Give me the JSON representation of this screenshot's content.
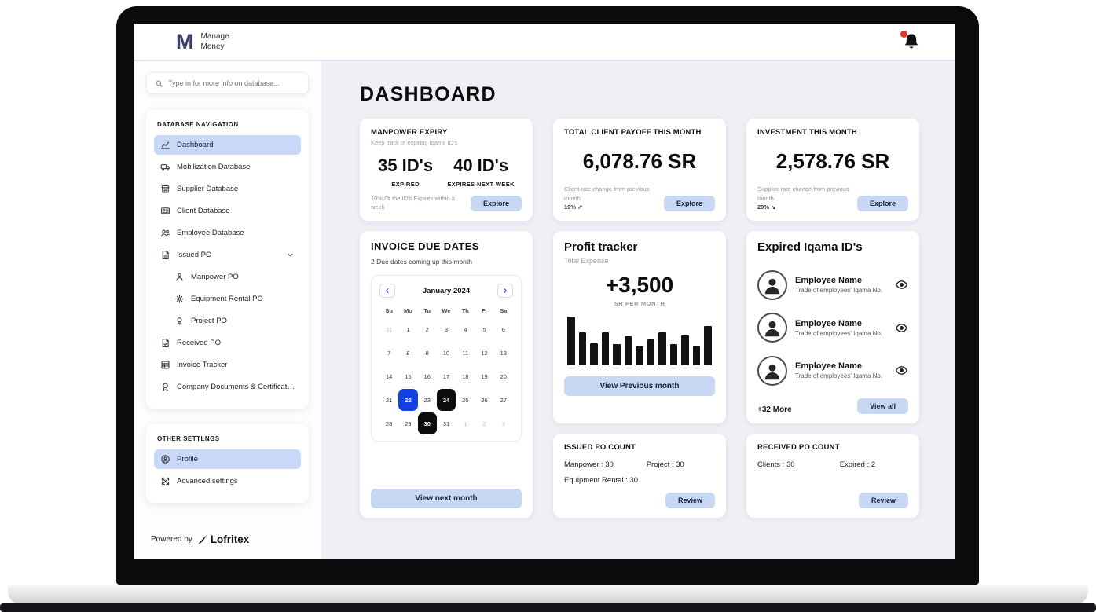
{
  "brand": {
    "logo_letter": "M",
    "name_line1": "Manage",
    "name_line2": "Money"
  },
  "topbar": {
    "notification_icon": "bell-icon",
    "notification_badge_color": "#e5362b"
  },
  "sidebar": {
    "search": {
      "placeholder": "Type in for more info on database...",
      "icon": "search-icon"
    },
    "nav_section_label": "DATABASE NAVIGATION",
    "nav": [
      {
        "label": "Dashboard",
        "icon": "dashboard-chart-icon",
        "active": true
      },
      {
        "label": "Mobilization Database",
        "icon": "truck-icon"
      },
      {
        "label": "Supplier Database",
        "icon": "store-icon"
      },
      {
        "label": "Client Database",
        "icon": "client-card-icon"
      },
      {
        "label": "Employee Database",
        "icon": "employees-icon"
      },
      {
        "label": "Issued PO",
        "icon": "document-icon",
        "expandable": true
      },
      {
        "label": "Manpower PO",
        "icon": "person-icon",
        "child": true
      },
      {
        "label": "Equipment Rental PO",
        "icon": "gear-icon",
        "child": true
      },
      {
        "label": "Project PO",
        "icon": "lightbulb-icon",
        "child": true
      },
      {
        "label": "Received PO",
        "icon": "document-check-icon"
      },
      {
        "label": "Invoice Tracker",
        "icon": "table-icon"
      },
      {
        "label": "Company Documents & Certifications",
        "icon": "certificate-icon"
      }
    ],
    "settings_section_label": "OTHER SETTLNGS",
    "settings": [
      {
        "label": "Profile",
        "icon": "profile-icon",
        "active": true
      },
      {
        "label": "Advanced settings",
        "icon": "advanced-settings-icon"
      }
    ],
    "footer": {
      "powered_by": "Powered by",
      "brand": "Lofritex"
    }
  },
  "main": {
    "page_title": "DASHBOARD",
    "manpower_expiry": {
      "title": "MANPOWER EXPIRY",
      "subtitle": "Keep track of expiring Iqama ID's",
      "stat1_value": "35 ID's",
      "stat1_label": "EXPIRED",
      "stat2_value": "40 ID's",
      "stat2_label": "EXPIRES NEXT WEEK",
      "note": "10% Of the ID's Expires within a week",
      "button": "Explore"
    },
    "client_payoff": {
      "title": "TOTAL CLIENT PAYOFF THIS MONTH",
      "value": "6,078.76 SR",
      "note_line1": "Client rate change from previous month",
      "note_line2": "19% ↗",
      "button": "Explore"
    },
    "investment": {
      "title": "INVESTMENT THIS MONTH",
      "value": "2,578.76 SR",
      "note_line1": "Supplier rate change from previous month",
      "note_line2": "20% ↘",
      "button": "Explore"
    },
    "profit_tracker": {
      "title": "Profit tracker",
      "subtitle": "Total Expense",
      "value": "+3,500",
      "unit": "SR PER MONTH",
      "button": "View Previous month",
      "chart": {
        "type": "bar",
        "color": "#121212",
        "values": [
          100,
          68,
          45,
          67,
          44,
          60,
          39,
          53,
          67,
          44,
          61,
          41,
          80
        ]
      }
    },
    "expired_iqama": {
      "title": "Expired Iqama ID's",
      "employees": [
        {
          "name": "Employee Name",
          "detail": "Trade of employees' Iqama No."
        },
        {
          "name": "Employee Name",
          "detail": "Trade of employees' Iqama No."
        },
        {
          "name": "Employee Name",
          "detail": "Trade of employees' Iqama No."
        }
      ],
      "more": "+32 More",
      "button": "View all"
    },
    "invoice_due": {
      "title": "INVOICE DUE DATES",
      "subtitle": "2 Due dates coming up this month",
      "button": "View next month",
      "calendar": {
        "month": "January 2024",
        "prev_icon": "chevron-left-icon",
        "next_icon": "chevron-right-icon",
        "day_headers": [
          "Su",
          "Mo",
          "Tu",
          "We",
          "Th",
          "Fr",
          "Sa"
        ],
        "selected_blue": "22",
        "selected_black": [
          "24",
          "30"
        ],
        "cells": [
          {
            "d": "31",
            "muted": true
          },
          {
            "d": "1"
          },
          {
            "d": "2"
          },
          {
            "d": "3"
          },
          {
            "d": "4"
          },
          {
            "d": "5"
          },
          {
            "d": "6"
          },
          {
            "d": "7"
          },
          {
            "d": "8"
          },
          {
            "d": "9"
          },
          {
            "d": "10"
          },
          {
            "d": "11"
          },
          {
            "d": "12"
          },
          {
            "d": "13"
          },
          {
            "d": "14"
          },
          {
            "d": "15"
          },
          {
            "d": "16"
          },
          {
            "d": "17"
          },
          {
            "d": "18"
          },
          {
            "d": "19"
          },
          {
            "d": "20"
          },
          {
            "d": "21"
          },
          {
            "d": "22",
            "style": "blue"
          },
          {
            "d": "23"
          },
          {
            "d": "24",
            "style": "black"
          },
          {
            "d": "25"
          },
          {
            "d": "26"
          },
          {
            "d": "27"
          },
          {
            "d": "28"
          },
          {
            "d": "29"
          },
          {
            "d": "30",
            "style": "black"
          },
          {
            "d": "31"
          },
          {
            "d": "1",
            "muted": true
          },
          {
            "d": "2",
            "muted": true
          },
          {
            "d": "3",
            "muted": true
          }
        ]
      }
    },
    "issued_po": {
      "title": "ISSUED PO COUNT",
      "items": [
        "Manpower : 30",
        "Project : 30",
        "Equipment Rental : 30"
      ],
      "button": "Review"
    },
    "received_po": {
      "title": "RECEIVED PO COUNT",
      "items": [
        "Clients : 30",
        "Expired : 2"
      ],
      "button": "Review"
    }
  },
  "colors": {
    "accent_light": "#c7d7f4",
    "selected_blue": "#1340e0",
    "selected_black": "#0b0b0b",
    "notification_red": "#e5362b"
  }
}
